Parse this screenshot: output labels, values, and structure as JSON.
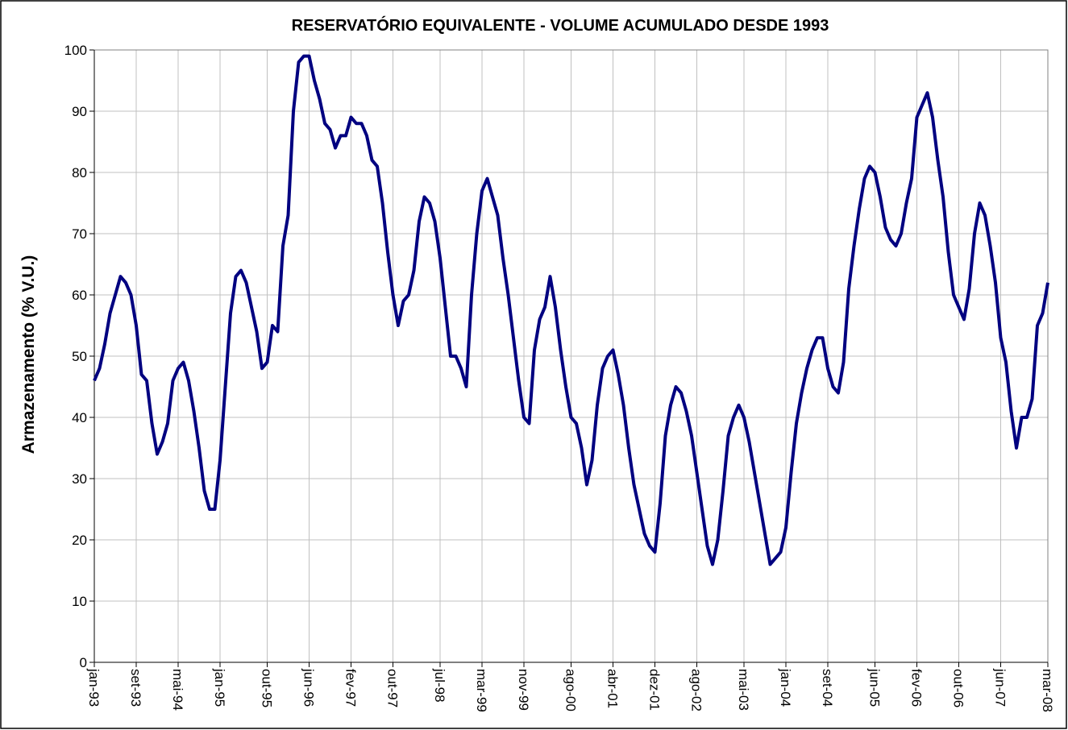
{
  "chart_data": {
    "type": "line",
    "title": "RESERVATÓRIO EQUIVALENTE - VOLUME ACUMULADO DESDE 1993",
    "y_label": "Armazenamento (%  V.U.)",
    "categories": [
      "jan-93",
      null,
      null,
      null,
      null,
      null,
      null,
      null,
      "set-93",
      null,
      null,
      null,
      null,
      null,
      null,
      null,
      "mai-94",
      null,
      null,
      null,
      null,
      null,
      null,
      null,
      "jan-95",
      null,
      null,
      null,
      null,
      null,
      null,
      null,
      null,
      "out-95",
      null,
      null,
      null,
      null,
      null,
      null,
      null,
      "jun-96",
      null,
      null,
      null,
      null,
      null,
      null,
      null,
      "fev-97",
      null,
      null,
      null,
      null,
      null,
      null,
      null,
      "out-97",
      null,
      null,
      null,
      null,
      null,
      null,
      null,
      null,
      "jul-98",
      null,
      null,
      null,
      null,
      null,
      null,
      null,
      "mar-99",
      null,
      null,
      null,
      null,
      null,
      null,
      null,
      "nov-99",
      null,
      null,
      null,
      null,
      null,
      null,
      null,
      null,
      "ago-00",
      null,
      null,
      null,
      null,
      null,
      null,
      null,
      "abr-01",
      null,
      null,
      null,
      null,
      null,
      null,
      null,
      "dez-01",
      null,
      null,
      null,
      null,
      null,
      null,
      null,
      "ago-02",
      null,
      null,
      null,
      null,
      null,
      null,
      null,
      null,
      "mai-03",
      null,
      null,
      null,
      null,
      null,
      null,
      null,
      "jan-04",
      null,
      null,
      null,
      null,
      null,
      null,
      null,
      "set-04",
      null,
      null,
      null,
      null,
      null,
      null,
      null,
      null,
      "jun-05",
      null,
      null,
      null,
      null,
      null,
      null,
      null,
      "fev-06",
      null,
      null,
      null,
      null,
      null,
      null,
      null,
      "out-06",
      null,
      null,
      null,
      null,
      null,
      null,
      null,
      "jun-07",
      null,
      null,
      null,
      null,
      null,
      null,
      null,
      null,
      "mar-08"
    ],
    "values": [
      46,
      48,
      52,
      57,
      60,
      63,
      62,
      60,
      55,
      47,
      46,
      39,
      34,
      36,
      39,
      46,
      48,
      49,
      46,
      41,
      35,
      28,
      25,
      25,
      33,
      45,
      57,
      63,
      64,
      62,
      58,
      54,
      48,
      49,
      55,
      54,
      68,
      73,
      90,
      98,
      99,
      99,
      95,
      92,
      88,
      87,
      84,
      86,
      86,
      89,
      88,
      88,
      86,
      82,
      81,
      75,
      67,
      60,
      55,
      59,
      60,
      64,
      72,
      76,
      75,
      72,
      66,
      58,
      50,
      50,
      48,
      45,
      60,
      70,
      77,
      79,
      76,
      73,
      66,
      60,
      53,
      46,
      40,
      39,
      51,
      56,
      58,
      63,
      58,
      51,
      45,
      40,
      39,
      35,
      29,
      33,
      42,
      48,
      50,
      51,
      47,
      42,
      35,
      29,
      25,
      21,
      19,
      18,
      26,
      37,
      42,
      45,
      44,
      41,
      37,
      31,
      25,
      19,
      16,
      20,
      28,
      37,
      40,
      42,
      40,
      36,
      31,
      26,
      21,
      16,
      17,
      18,
      22,
      31,
      39,
      44,
      48,
      51,
      53,
      53,
      48,
      45,
      44,
      49,
      61,
      68,
      74,
      79,
      81,
      80,
      76,
      71,
      69,
      68,
      70,
      75,
      79,
      89,
      91,
      93,
      89,
      82,
      76,
      67,
      60,
      58,
      56,
      61,
      70,
      75,
      73,
      68,
      62,
      53,
      49,
      41,
      35,
      40,
      40,
      43,
      55,
      57,
      62
    ],
    "color": "#000080",
    "ylim": [
      0,
      100
    ],
    "yticks": [
      0,
      10,
      20,
      30,
      40,
      50,
      60,
      70,
      80,
      90,
      100
    ],
    "grid": true
  }
}
